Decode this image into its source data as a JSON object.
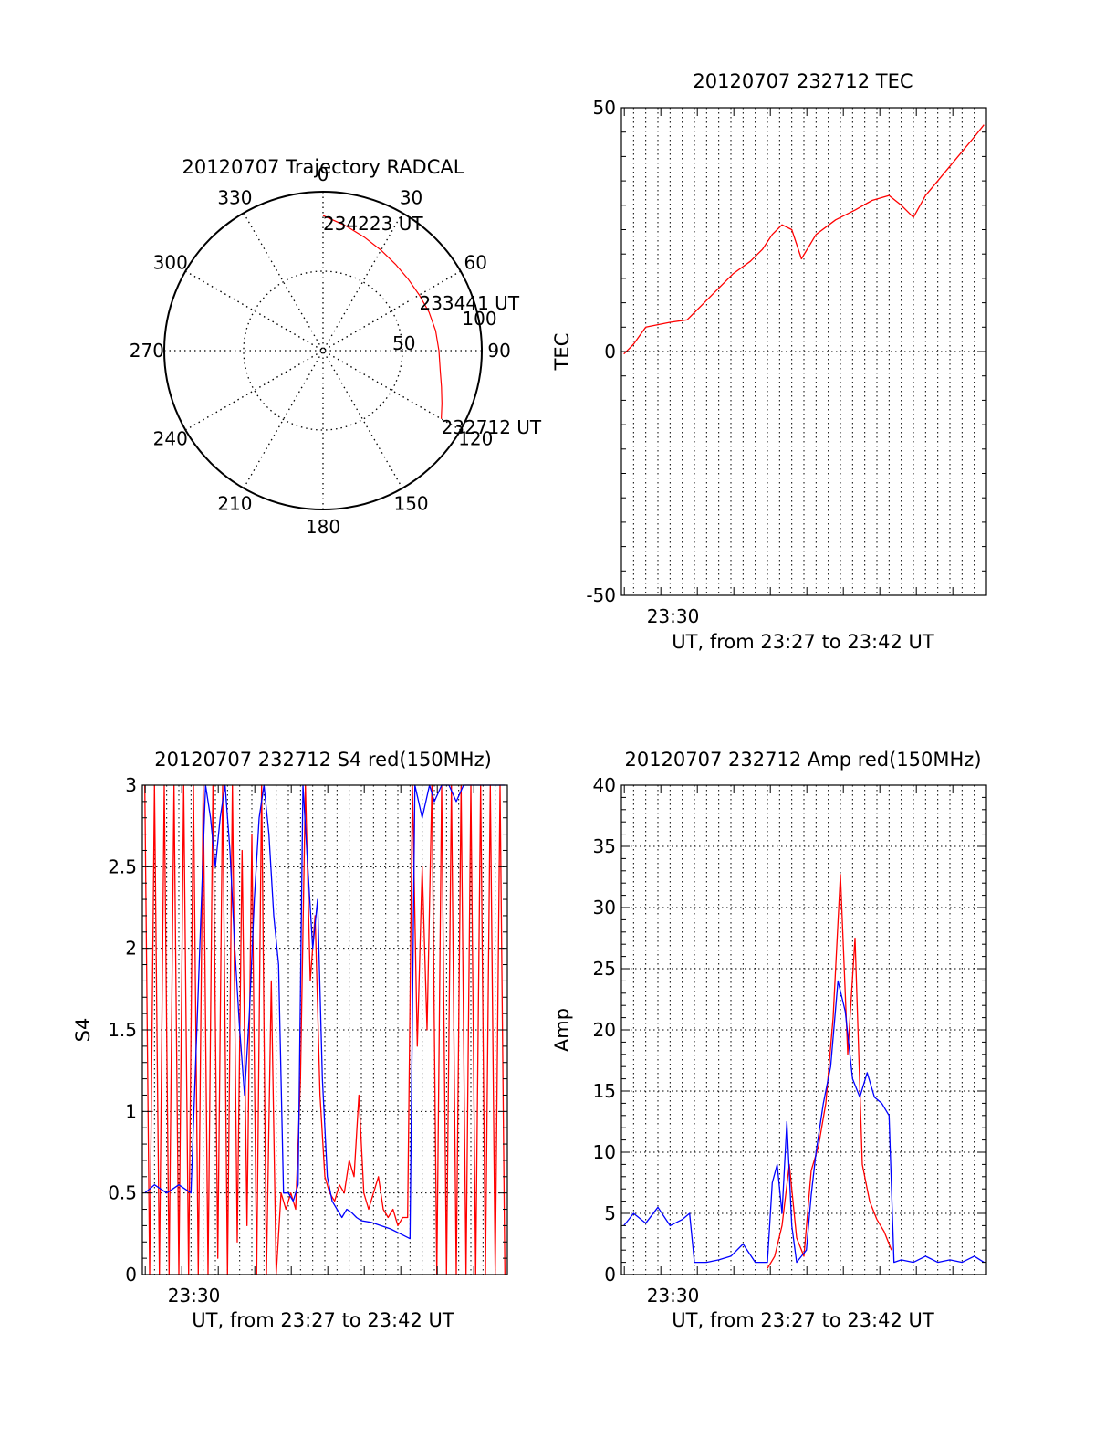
{
  "chart_data": [
    {
      "id": "trajectory",
      "type": "polar",
      "title": "20120707 Trajectory RADCAL",
      "azimuth_labels": [
        "0",
        "30",
        "60",
        "90",
        "120",
        "150",
        "180",
        "210",
        "240",
        "270",
        "300",
        "330"
      ],
      "radial_labels": [
        "50",
        "100"
      ],
      "radial_range": [
        0,
        100
      ],
      "grid": true,
      "series": [
        {
          "color": "#ff0000",
          "points": [
            {
              "az": 0,
              "r": 85
            },
            {
              "az": 10,
              "r": 80
            },
            {
              "az": 20,
              "r": 76
            },
            {
              "az": 30,
              "r": 73
            },
            {
              "az": 40,
              "r": 71
            },
            {
              "az": 50,
              "r": 70
            },
            {
              "az": 60,
              "r": 70
            },
            {
              "az": 70,
              "r": 71
            },
            {
              "az": 80,
              "r": 72
            },
            {
              "az": 90,
              "r": 73
            },
            {
              "az": 100,
              "r": 75
            },
            {
              "az": 107,
              "r": 78
            },
            {
              "az": 114,
              "r": 82
            },
            {
              "az": 120,
              "r": 86
            }
          ]
        }
      ],
      "annotations": [
        {
          "text": "234223 UT",
          "az": 0,
          "r": 85
        },
        {
          "text": "233441 UT",
          "az": 60,
          "r": 70
        },
        {
          "text": "232712 UT",
          "az": 120,
          "r": 86
        }
      ]
    },
    {
      "id": "tec",
      "type": "line",
      "title": "20120707 232712 TEC",
      "xlabel": "UT, from 23:27 to 23:42 UT",
      "ylabel": "TEC",
      "xlim": [
        0,
        15
      ],
      "ylim": [
        -50,
        50
      ],
      "x_tick_labels": [
        {
          "x": 2.12,
          "label": "23:30"
        }
      ],
      "y_tick_labels": [
        "-50",
        "0",
        "50"
      ],
      "grid": true,
      "series": [
        {
          "color": "#ff0000",
          "x": [
            0.1,
            0.5,
            1.0,
            1.5,
            2.0,
            2.7,
            3.3,
            4.0,
            4.6,
            5.3,
            5.8,
            6.2,
            6.6,
            7.0,
            7.4,
            8.0,
            8.8,
            9.6,
            10.3,
            11.0,
            11.5,
            12.0,
            12.5,
            13.0,
            13.5,
            14.0,
            14.5,
            14.9
          ],
          "y": [
            -0.5,
            1.5,
            5.0,
            5.5,
            6.0,
            6.5,
            9.5,
            13.0,
            16.0,
            18.5,
            21.0,
            24.0,
            26.0,
            25.0,
            19.0,
            24.0,
            27.0,
            29.0,
            31.0,
            32.0,
            30.0,
            27.5,
            32.0,
            35.0,
            38.0,
            41.0,
            44.0,
            46.5
          ]
        }
      ]
    },
    {
      "id": "s4",
      "type": "line",
      "title": "20120707 232712 S4 red(150MHz)",
      "xlabel": "UT, from 23:27 to 23:42 UT",
      "ylabel": "S4",
      "xlim": [
        0,
        15
      ],
      "ylim": [
        0,
        3
      ],
      "x_tick_labels": [
        {
          "x": 2.12,
          "label": "23:30"
        }
      ],
      "y_tick_labels": [
        "0",
        "0.5",
        "1",
        "1.5",
        "2",
        "2.5",
        "3"
      ],
      "grid": true,
      "series": [
        {
          "color": "#ff0000",
          "x": [
            0.1,
            0.3,
            0.5,
            0.7,
            0.9,
            1.1,
            1.3,
            1.5,
            1.7,
            1.9,
            2.1,
            2.3,
            2.5,
            2.7,
            2.9,
            3.1,
            3.3,
            3.5,
            3.7,
            3.9,
            4.1,
            4.3,
            4.5,
            4.7,
            4.9,
            5.1,
            5.3,
            5.5,
            5.7,
            5.9,
            6.1,
            6.3,
            6.5,
            6.7,
            6.9,
            7.1,
            7.3,
            7.5,
            7.7,
            7.9,
            8.1,
            8.3,
            8.5,
            8.7,
            8.9,
            9.1,
            9.3,
            9.5,
            9.7,
            9.9,
            10.1,
            10.3,
            10.5,
            10.7,
            10.9,
            11.1,
            11.3,
            11.5,
            11.7,
            11.9,
            12.1,
            12.3,
            12.5,
            12.7,
            12.9,
            13.1,
            13.3,
            13.5,
            13.7,
            13.9,
            14.1,
            14.3,
            14.5,
            14.7,
            14.9
          ],
          "y": [
            3.0,
            0.0,
            3.0,
            0.0,
            3.0,
            0.0,
            3.0,
            0.0,
            3.0,
            0.0,
            3.0,
            0.0,
            3.0,
            0.0,
            3.0,
            0.1,
            3.0,
            0.0,
            3.0,
            0.2,
            2.6,
            0.3,
            2.7,
            0.0,
            3.0,
            0.0,
            1.8,
            0.0,
            0.5,
            0.4,
            0.5,
            0.4,
            1.2,
            3.0,
            1.8,
            2.2,
            1.1,
            0.6,
            0.5,
            0.45,
            0.55,
            0.5,
            0.7,
            0.6,
            1.1,
            0.5,
            0.4,
            0.5,
            0.6,
            0.4,
            0.35,
            0.4,
            0.3,
            0.35,
            0.35,
            3.0,
            1.4,
            2.5,
            1.5,
            3.0,
            0.0,
            3.0,
            0.0,
            3.0,
            0.0,
            3.0,
            0.0,
            3.0,
            0.0,
            3.0,
            0.0,
            3.0,
            0.0,
            3.0,
            0.0
          ]
        },
        {
          "color": "#0000ff",
          "x": [
            0.1,
            0.5,
            1.0,
            1.5,
            2.0,
            2.6,
            2.8,
            3.0,
            3.2,
            3.4,
            3.6,
            3.8,
            4.0,
            4.2,
            4.4,
            4.6,
            4.8,
            5.0,
            5.2,
            5.4,
            5.6,
            5.8,
            6.0,
            6.2,
            6.4,
            6.6,
            6.8,
            7.0,
            7.2,
            7.4,
            7.6,
            7.8,
            8.0,
            8.2,
            8.4,
            8.6,
            8.8,
            9.0,
            9.4,
            9.8,
            10.2,
            10.6,
            11.0,
            11.2,
            11.5,
            11.8,
            12.0,
            12.3,
            12.6,
            12.9,
            13.2,
            13.5,
            13.8,
            14.1,
            14.4,
            14.7,
            14.9
          ],
          "y": [
            0.5,
            0.55,
            0.5,
            0.55,
            0.5,
            3.0,
            2.8,
            2.5,
            2.8,
            3.0,
            2.6,
            2.0,
            1.5,
            1.1,
            1.6,
            2.3,
            2.8,
            3.0,
            2.7,
            2.2,
            1.9,
            0.5,
            0.5,
            0.45,
            0.55,
            3.0,
            2.5,
            2.0,
            2.3,
            1.2,
            0.6,
            0.45,
            0.4,
            0.35,
            0.4,
            0.38,
            0.35,
            0.33,
            0.32,
            0.3,
            0.28,
            0.25,
            0.22,
            3.0,
            2.8,
            3.0,
            2.9,
            3.0,
            3.0,
            2.9,
            3.0,
            3.0,
            3.0,
            3.0,
            3.0,
            3.0,
            3.0
          ]
        }
      ]
    },
    {
      "id": "amp",
      "type": "line",
      "title": "20120707 232712 Amp red(150MHz)",
      "xlabel": "UT, from 23:27 to 23:42 UT",
      "ylabel": "Amp",
      "xlim": [
        0,
        15
      ],
      "ylim": [
        0,
        40
      ],
      "x_tick_labels": [
        {
          "x": 2.12,
          "label": "23:30"
        }
      ],
      "y_tick_labels": [
        "0",
        "5",
        "10",
        "15",
        "20",
        "25",
        "30",
        "35",
        "40"
      ],
      "grid": true,
      "series": [
        {
          "color": "#ff0000",
          "x": [
            6.0,
            6.3,
            6.6,
            6.9,
            7.2,
            7.5,
            7.8,
            8.1,
            8.4,
            8.7,
            9.0,
            9.3,
            9.6,
            9.9,
            10.2,
            10.5,
            10.8,
            11.1
          ],
          "y": [
            0.5,
            1.5,
            4.0,
            9.0,
            3.0,
            1.5,
            8.5,
            10.5,
            14.0,
            21.0,
            32.7,
            18.0,
            27.5,
            9.0,
            6.0,
            4.5,
            3.5,
            2.0
          ]
        },
        {
          "color": "#0000ff",
          "x": [
            0.1,
            0.5,
            1.0,
            1.5,
            2.0,
            2.5,
            2.8,
            3.0,
            3.5,
            4.0,
            4.5,
            5.0,
            5.5,
            6.0,
            6.2,
            6.4,
            6.6,
            6.8,
            7.0,
            7.2,
            7.4,
            7.6,
            7.8,
            8.0,
            8.3,
            8.6,
            8.9,
            9.2,
            9.5,
            9.8,
            10.1,
            10.4,
            10.7,
            11.0,
            11.2,
            11.5,
            12.0,
            12.5,
            13.0,
            13.5,
            14.0,
            14.5,
            14.9
          ],
          "y": [
            4.0,
            5.0,
            4.2,
            5.5,
            4.0,
            4.5,
            5.0,
            1.0,
            1.0,
            1.2,
            1.5,
            2.5,
            1.0,
            1.0,
            7.5,
            9.0,
            5.0,
            12.5,
            4.0,
            1.0,
            1.5,
            2.0,
            6.5,
            10.0,
            14.0,
            17.0,
            24.0,
            21.5,
            16.0,
            14.5,
            16.5,
            14.5,
            14.0,
            13.0,
            1.0,
            1.2,
            1.0,
            1.5,
            1.0,
            1.2,
            1.0,
            1.5,
            1.0
          ]
        }
      ]
    }
  ]
}
